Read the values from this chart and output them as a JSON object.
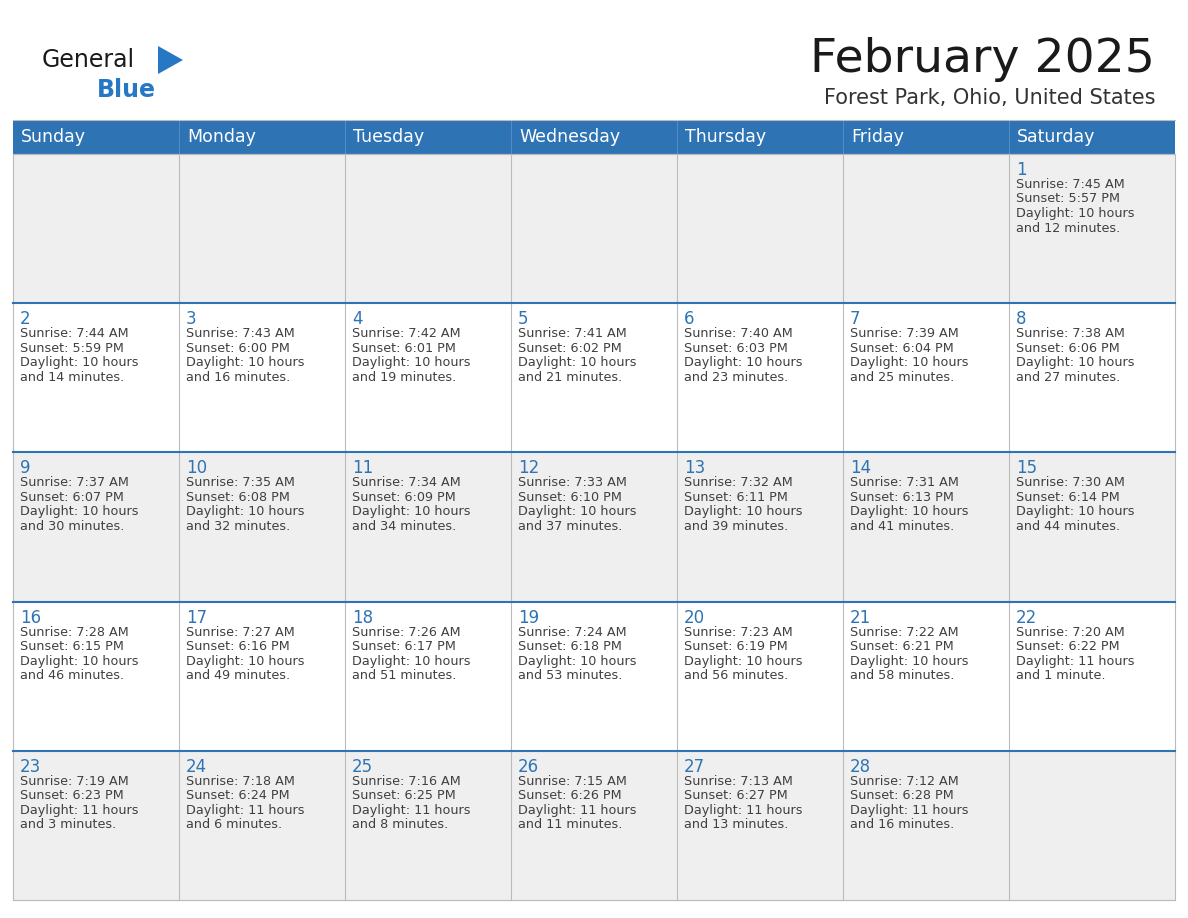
{
  "title": "February 2025",
  "subtitle": "Forest Park, Ohio, United States",
  "days_of_week": [
    "Sunday",
    "Monday",
    "Tuesday",
    "Wednesday",
    "Thursday",
    "Friday",
    "Saturday"
  ],
  "header_bg": "#2E74B5",
  "header_text": "#FFFFFF",
  "cell_bg_light": "#F2F2F2",
  "cell_bg_white": "#FFFFFF",
  "cell_border_inner": "#AAAAAA",
  "cell_border_week": "#2E74B5",
  "day_number_color": "#2E74B5",
  "text_color": "#404040",
  "title_color": "#1a1a1a",
  "subtitle_color": "#333333",
  "logo_general_color": "#1a1a1a",
  "logo_blue_color": "#2778C4",
  "bg_color": "#FFFFFF",
  "calendar_data": [
    [
      null,
      null,
      null,
      null,
      null,
      null,
      1
    ],
    [
      2,
      3,
      4,
      5,
      6,
      7,
      8
    ],
    [
      9,
      10,
      11,
      12,
      13,
      14,
      15
    ],
    [
      16,
      17,
      18,
      19,
      20,
      21,
      22
    ],
    [
      23,
      24,
      25,
      26,
      27,
      28,
      null
    ]
  ],
  "row_bg": [
    "#EFEFEF",
    "#FFFFFF",
    "#EFEFEF",
    "#FFFFFF",
    "#EFEFEF"
  ],
  "cell_info": {
    "1": {
      "sunrise": "7:45 AM",
      "sunset": "5:57 PM",
      "daylight": "10 hours and 12 minutes."
    },
    "2": {
      "sunrise": "7:44 AM",
      "sunset": "5:59 PM",
      "daylight": "10 hours and 14 minutes."
    },
    "3": {
      "sunrise": "7:43 AM",
      "sunset": "6:00 PM",
      "daylight": "10 hours and 16 minutes."
    },
    "4": {
      "sunrise": "7:42 AM",
      "sunset": "6:01 PM",
      "daylight": "10 hours and 19 minutes."
    },
    "5": {
      "sunrise": "7:41 AM",
      "sunset": "6:02 PM",
      "daylight": "10 hours and 21 minutes."
    },
    "6": {
      "sunrise": "7:40 AM",
      "sunset": "6:03 PM",
      "daylight": "10 hours and 23 minutes."
    },
    "7": {
      "sunrise": "7:39 AM",
      "sunset": "6:04 PM",
      "daylight": "10 hours and 25 minutes."
    },
    "8": {
      "sunrise": "7:38 AM",
      "sunset": "6:06 PM",
      "daylight": "10 hours and 27 minutes."
    },
    "9": {
      "sunrise": "7:37 AM",
      "sunset": "6:07 PM",
      "daylight": "10 hours and 30 minutes."
    },
    "10": {
      "sunrise": "7:35 AM",
      "sunset": "6:08 PM",
      "daylight": "10 hours and 32 minutes."
    },
    "11": {
      "sunrise": "7:34 AM",
      "sunset": "6:09 PM",
      "daylight": "10 hours and 34 minutes."
    },
    "12": {
      "sunrise": "7:33 AM",
      "sunset": "6:10 PM",
      "daylight": "10 hours and 37 minutes."
    },
    "13": {
      "sunrise": "7:32 AM",
      "sunset": "6:11 PM",
      "daylight": "10 hours and 39 minutes."
    },
    "14": {
      "sunrise": "7:31 AM",
      "sunset": "6:13 PM",
      "daylight": "10 hours and 41 minutes."
    },
    "15": {
      "sunrise": "7:30 AM",
      "sunset": "6:14 PM",
      "daylight": "10 hours and 44 minutes."
    },
    "16": {
      "sunrise": "7:28 AM",
      "sunset": "6:15 PM",
      "daylight": "10 hours and 46 minutes."
    },
    "17": {
      "sunrise": "7:27 AM",
      "sunset": "6:16 PM",
      "daylight": "10 hours and 49 minutes."
    },
    "18": {
      "sunrise": "7:26 AM",
      "sunset": "6:17 PM",
      "daylight": "10 hours and 51 minutes."
    },
    "19": {
      "sunrise": "7:24 AM",
      "sunset": "6:18 PM",
      "daylight": "10 hours and 53 minutes."
    },
    "20": {
      "sunrise": "7:23 AM",
      "sunset": "6:19 PM",
      "daylight": "10 hours and 56 minutes."
    },
    "21": {
      "sunrise": "7:22 AM",
      "sunset": "6:21 PM",
      "daylight": "10 hours and 58 minutes."
    },
    "22": {
      "sunrise": "7:20 AM",
      "sunset": "6:22 PM",
      "daylight": "11 hours and 1 minute."
    },
    "23": {
      "sunrise": "7:19 AM",
      "sunset": "6:23 PM",
      "daylight": "11 hours and 3 minutes."
    },
    "24": {
      "sunrise": "7:18 AM",
      "sunset": "6:24 PM",
      "daylight": "11 hours and 6 minutes."
    },
    "25": {
      "sunrise": "7:16 AM",
      "sunset": "6:25 PM",
      "daylight": "11 hours and 8 minutes."
    },
    "26": {
      "sunrise": "7:15 AM",
      "sunset": "6:26 PM",
      "daylight": "11 hours and 11 minutes."
    },
    "27": {
      "sunrise": "7:13 AM",
      "sunset": "6:27 PM",
      "daylight": "11 hours and 13 minutes."
    },
    "28": {
      "sunrise": "7:12 AM",
      "sunset": "6:28 PM",
      "daylight": "11 hours and 16 minutes."
    }
  }
}
